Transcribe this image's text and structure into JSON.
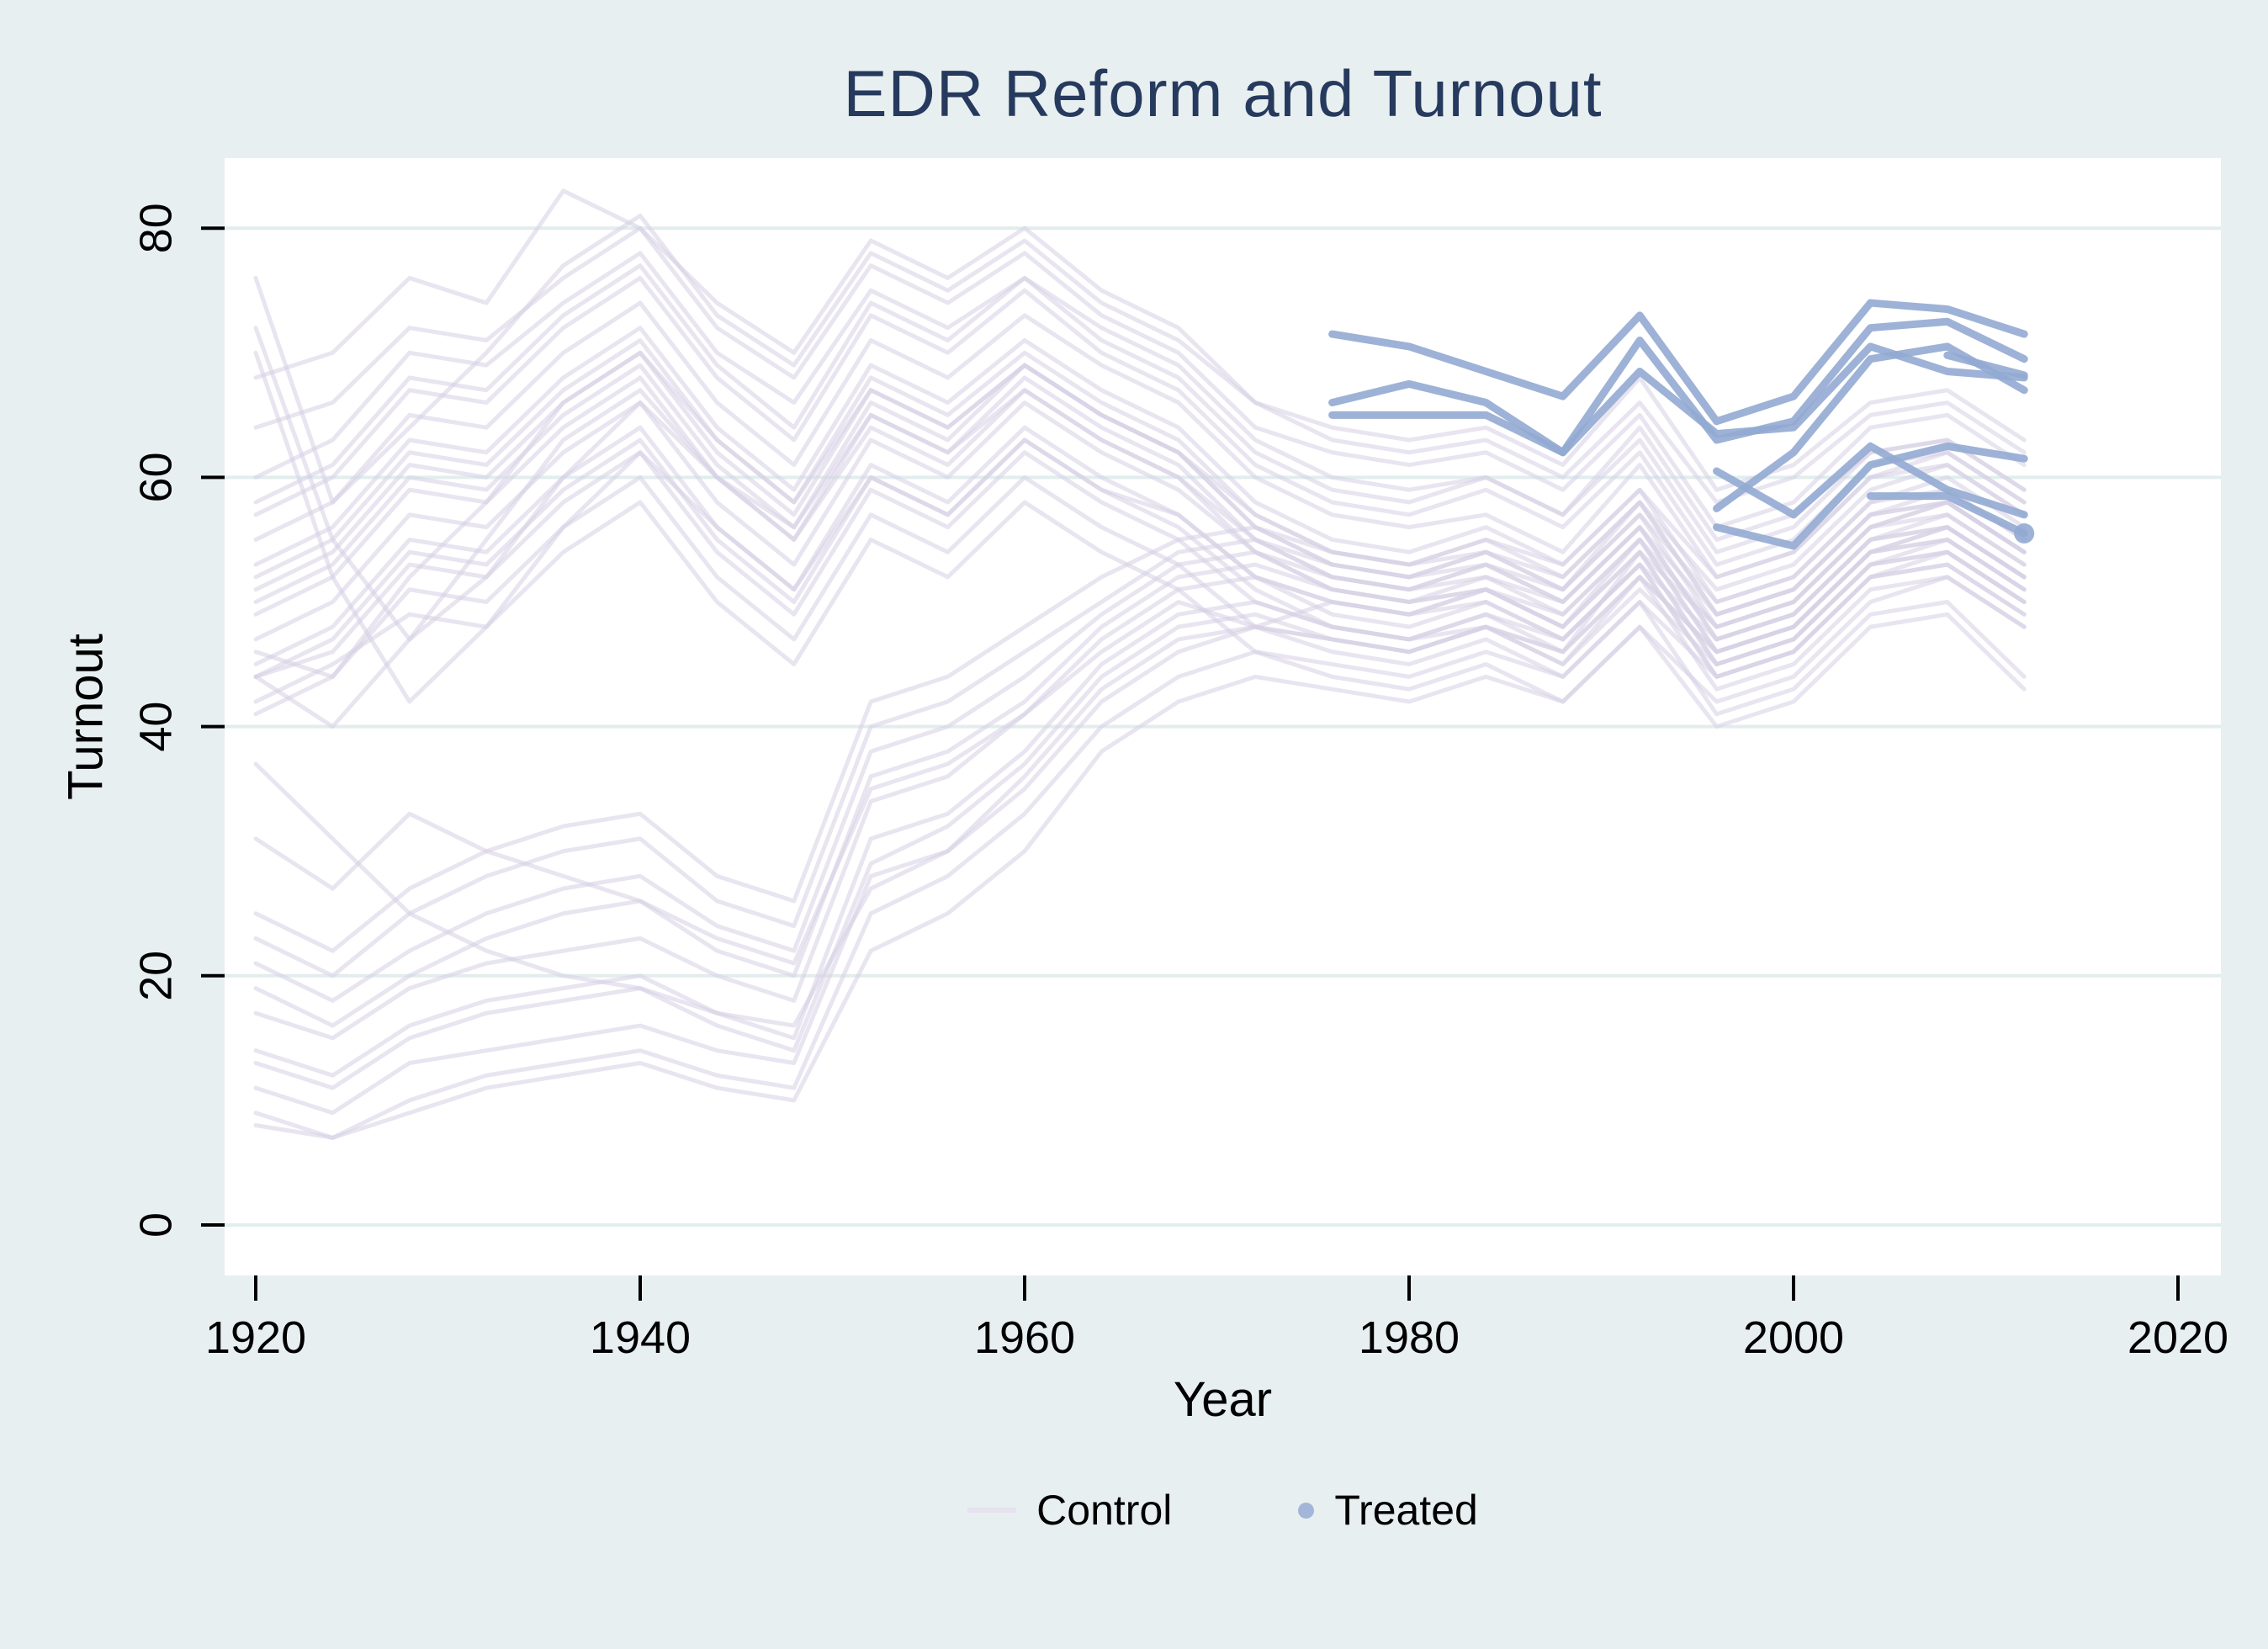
{
  "chart_data": {
    "type": "line",
    "title": "EDR Reform and Turnout",
    "xlabel": "Year",
    "ylabel": "Turnout",
    "x_ticks": [
      1920,
      1940,
      1960,
      1980,
      2000,
      2020
    ],
    "y_ticks": [
      0,
      20,
      40,
      60,
      80
    ],
    "xlim": [
      1918,
      2022
    ],
    "ylim": [
      -4,
      86.5
    ],
    "grid": "horizontal",
    "legend_position": "bottom-center",
    "legend": [
      {
        "label": "Control",
        "marker": "line"
      },
      {
        "label": "Treated",
        "marker": "dot"
      }
    ],
    "colors": {
      "background": "#e8eff1",
      "plot_background": "#ffffff",
      "gridline": "#e2edee",
      "title": "#263a5e",
      "axis_text": "#000000",
      "control_line": "#d5d0e3",
      "treated_line": "#92aad1",
      "treated_legend_dot": "#a3b6d9"
    },
    "years": [
      1920,
      1924,
      1928,
      1932,
      1936,
      1940,
      1944,
      1948,
      1952,
      1956,
      1960,
      1964,
      1968,
      1972,
      1976,
      1980,
      1984,
      1988,
      1992,
      1996,
      2000,
      2004,
      2008,
      2012
    ],
    "control_series": [
      [
        68,
        70,
        76,
        74,
        83,
        80,
        74,
        70,
        79,
        76,
        80,
        75,
        72,
        66,
        64,
        63,
        64,
        61,
        68,
        59,
        61,
        66,
        67,
        63
      ],
      [
        76,
        58,
        64,
        70,
        77,
        81,
        73,
        69,
        78,
        75,
        79,
        74,
        71,
        66,
        63,
        62,
        63,
        60,
        66,
        58,
        60,
        65,
        66,
        62
      ],
      [
        64,
        66,
        72,
        71,
        76,
        80,
        72,
        68,
        77,
        74,
        78,
        73,
        70,
        64,
        62,
        61,
        62,
        59,
        65,
        56,
        58,
        64,
        65,
        61
      ],
      [
        60,
        63,
        70,
        69,
        74,
        78,
        70,
        66,
        75,
        72,
        76,
        72,
        69,
        63,
        60,
        59,
        60,
        57,
        64,
        55,
        57,
        62,
        63,
        59
      ],
      [
        57,
        60,
        67,
        66,
        72,
        76,
        68,
        63,
        73,
        70,
        75,
        70,
        67,
        61,
        58,
        57,
        59,
        56,
        62,
        53,
        55,
        61,
        62,
        58
      ],
      [
        55,
        58,
        65,
        64,
        70,
        74,
        66,
        61,
        71,
        68,
        73,
        69,
        66,
        60,
        57,
        56,
        57,
        54,
        61,
        52,
        54,
        60,
        61,
        57
      ],
      [
        53,
        56,
        63,
        62,
        68,
        72,
        64,
        59,
        69,
        66,
        71,
        67,
        64,
        58,
        55,
        54,
        56,
        53,
        59,
        50,
        52,
        58,
        59,
        55
      ],
      [
        51,
        54,
        61,
        60,
        66,
        70,
        62,
        57,
        67,
        64,
        69,
        65,
        62,
        57,
        54,
        53,
        54,
        51,
        58,
        49,
        51,
        57,
        58,
        54
      ],
      [
        49,
        52,
        59,
        58,
        64,
        68,
        60,
        55,
        65,
        62,
        68,
        64,
        61,
        55,
        52,
        51,
        53,
        50,
        56,
        47,
        49,
        55,
        56,
        52
      ],
      [
        47,
        50,
        57,
        56,
        62,
        66,
        58,
        53,
        63,
        60,
        66,
        62,
        59,
        54,
        51,
        50,
        51,
        48,
        55,
        46,
        48,
        54,
        55,
        51
      ],
      [
        45,
        48,
        55,
        54,
        60,
        64,
        56,
        51,
        61,
        58,
        64,
        60,
        57,
        52,
        49,
        48,
        50,
        47,
        53,
        44,
        46,
        52,
        53,
        49
      ],
      [
        44,
        46,
        53,
        52,
        58,
        62,
        54,
        49,
        59,
        56,
        62,
        58,
        55,
        50,
        48,
        47,
        48,
        45,
        52,
        43,
        45,
        51,
        52,
        48
      ],
      [
        46,
        44,
        51,
        50,
        56,
        60,
        52,
        47,
        57,
        54,
        60,
        56,
        53,
        48,
        46,
        45,
        47,
        44,
        50,
        41,
        43,
        49,
        50,
        44
      ],
      [
        42,
        45,
        49,
        48,
        54,
        58,
        50,
        45,
        55,
        52,
        58,
        54,
        51,
        46,
        44,
        43,
        45,
        42,
        48,
        40,
        42,
        48,
        49,
        43
      ],
      [
        44,
        47,
        54,
        53,
        59,
        63,
        55,
        50,
        60,
        57,
        63,
        59,
        56,
        51,
        48,
        47,
        49,
        46,
        54,
        45,
        47,
        53,
        54,
        50
      ],
      [
        50,
        53,
        60,
        59,
        65,
        69,
        61,
        56,
        66,
        63,
        69,
        65,
        62,
        56,
        53,
        52,
        54,
        51,
        57,
        48,
        50,
        56,
        57,
        53
      ],
      [
        52,
        55,
        62,
        61,
        67,
        71,
        63,
        58,
        68,
        65,
        70,
        66,
        63,
        57,
        54,
        53,
        55,
        52,
        58,
        49,
        51,
        57,
        58,
        54
      ],
      [
        58,
        61,
        68,
        67,
        73,
        77,
        69,
        64,
        74,
        71,
        76,
        71,
        68,
        62,
        59,
        58,
        60,
        57,
        63,
        54,
        56,
        62,
        63,
        59
      ],
      [
        72,
        55,
        47,
        52,
        60,
        66,
        60,
        55,
        64,
        61,
        67,
        63,
        60,
        55,
        52,
        51,
        52,
        49,
        55,
        46,
        48,
        54,
        55,
        51
      ],
      [
        70,
        52,
        42,
        48,
        56,
        62,
        56,
        51,
        60,
        57,
        63,
        59,
        57,
        52,
        50,
        49,
        50,
        47,
        53,
        44,
        46,
        52,
        53,
        49
      ],
      [
        44,
        40,
        47,
        55,
        63,
        67,
        60,
        56,
        65,
        62,
        67,
        63,
        60,
        54,
        51,
        50,
        51,
        48,
        54,
        45,
        47,
        53,
        54,
        50
      ],
      [
        41,
        44,
        52,
        58,
        66,
        70,
        63,
        58,
        67,
        64,
        69,
        65,
        62,
        56,
        53,
        52,
        53,
        50,
        56,
        47,
        49,
        55,
        56,
        52
      ],
      [
        9,
        7,
        10,
        12,
        13,
        14,
        12,
        11,
        25,
        28,
        33,
        40,
        44,
        46,
        45,
        44,
        46,
        44,
        50,
        44,
        46,
        52,
        54,
        50
      ],
      [
        11,
        9,
        13,
        14,
        15,
        16,
        14,
        13,
        28,
        30,
        36,
        43,
        47,
        48,
        47,
        46,
        48,
        46,
        52,
        46,
        48,
        54,
        56,
        52
      ],
      [
        14,
        12,
        16,
        18,
        19,
        20,
        17,
        15,
        31,
        33,
        38,
        45,
        49,
        50,
        48,
        47,
        49,
        47,
        53,
        47,
        49,
        55,
        57,
        53
      ],
      [
        17,
        15,
        19,
        21,
        22,
        23,
        20,
        18,
        34,
        36,
        41,
        47,
        51,
        52,
        50,
        49,
        51,
        49,
        55,
        48,
        50,
        56,
        58,
        54
      ],
      [
        21,
        18,
        22,
        25,
        27,
        28,
        24,
        22,
        38,
        40,
        44,
        49,
        53,
        54,
        52,
        51,
        53,
        51,
        57,
        50,
        52,
        58,
        60,
        56
      ],
      [
        25,
        22,
        27,
        30,
        32,
        33,
        28,
        26,
        42,
        44,
        48,
        52,
        55,
        56,
        54,
        53,
        55,
        53,
        59,
        52,
        54,
        60,
        62,
        58
      ],
      [
        13,
        11,
        15,
        17,
        18,
        19,
        16,
        14,
        29,
        32,
        37,
        44,
        48,
        49,
        47,
        46,
        48,
        45,
        51,
        45,
        47,
        53,
        55,
        51
      ],
      [
        8,
        7,
        9,
        11,
        12,
        13,
        11,
        10,
        22,
        25,
        30,
        38,
        42,
        44,
        43,
        42,
        44,
        42,
        48,
        42,
        44,
        50,
        52,
        48
      ],
      [
        19,
        16,
        20,
        23,
        25,
        26,
        22,
        20,
        36,
        38,
        42,
        48,
        52,
        53,
        51,
        50,
        52,
        50,
        56,
        49,
        51,
        57,
        59,
        55
      ],
      [
        23,
        20,
        25,
        28,
        30,
        31,
        26,
        24,
        40,
        42,
        46,
        50,
        54,
        55,
        53,
        52,
        54,
        52,
        58,
        51,
        53,
        59,
        61,
        57
      ],
      [
        31,
        27,
        33,
        30,
        28,
        26,
        23,
        21,
        35,
        37,
        41,
        46,
        50,
        48,
        50,
        49,
        51,
        48,
        54,
        48,
        50,
        56,
        58,
        54
      ],
      [
        37,
        31,
        25,
        22,
        20,
        19,
        17,
        16,
        27,
        30,
        35,
        42,
        46,
        48,
        47,
        46,
        48,
        46,
        52,
        46,
        48,
        54,
        56,
        52
      ]
    ],
    "treated_series": [
      {
        "start_year": 1976,
        "values": [
          71.5,
          70.5,
          68.5,
          66.5,
          73,
          64.5,
          66.5,
          74,
          73.5,
          71.5
        ],
        "end_marker": false
      },
      {
        "start_year": 1976,
        "values": [
          66,
          67.5,
          66,
          62,
          71,
          63,
          64.5,
          72,
          72.5,
          69.5
        ],
        "end_marker": false
      },
      {
        "start_year": 1976,
        "values": [
          65,
          65,
          65,
          62,
          68.5,
          63.5,
          64,
          70.5,
          68.5,
          68
        ],
        "end_marker": false
      },
      {
        "start_year": 1996,
        "values": [
          57.5,
          62,
          69.5,
          70.5,
          67
        ],
        "end_marker": false
      },
      {
        "start_year": 1996,
        "values": [
          56,
          54.5,
          61,
          62.5,
          61.5
        ],
        "end_marker": false
      },
      {
        "start_year": 1996,
        "values": [
          60.5,
          57,
          62.5,
          59,
          57
        ],
        "end_marker": false
      },
      {
        "start_year": 2004,
        "values": [
          58.5,
          58.5,
          55.5
        ],
        "end_marker": true
      },
      {
        "start_year": 2008,
        "values": [
          69.8,
          68.2
        ],
        "end_marker": false
      }
    ]
  }
}
